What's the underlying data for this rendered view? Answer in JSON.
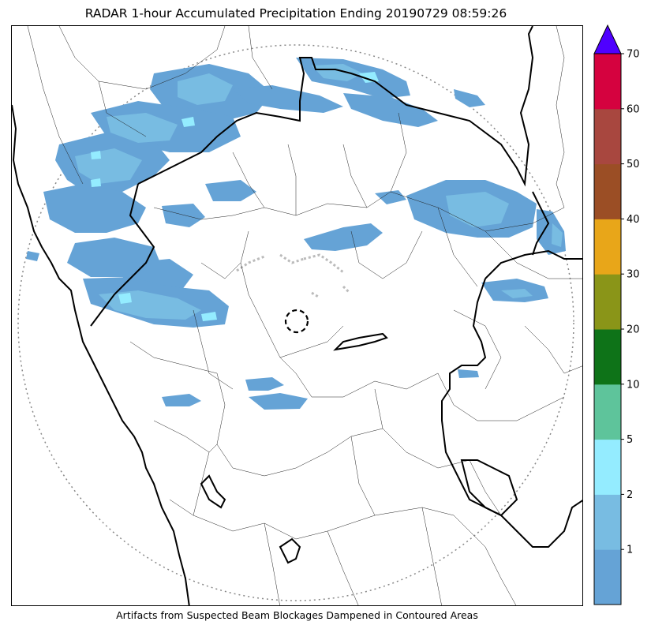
{
  "title": "RADAR 1-hour Accumulated Precipitation Ending 20190729 08:59:26",
  "footnote": "Artifacts from Suspected Beam Blockages Dampened in Contoured Areas",
  "colorbar": {
    "tick_labels": [
      "1",
      "2",
      "5",
      "10",
      "20",
      "30",
      "40",
      "50",
      "60",
      "70"
    ],
    "bins": [
      {
        "color": "#65a3d6"
      },
      {
        "color": "#78bce2"
      },
      {
        "color": "#94ecff"
      },
      {
        "color": "#5ec49b"
      },
      {
        "color": "#0e7318"
      },
      {
        "color": "#8a9518"
      },
      {
        "color": "#e8a619"
      },
      {
        "color": "#9b4e25"
      },
      {
        "color": "#a8473f"
      },
      {
        "color": "#d5023f"
      }
    ],
    "extend_color": "#4f00ff"
  },
  "colors": {
    "rain_light": "#65a3d6",
    "rain_mid": "#78bce2",
    "rain_cyan": "#94ecff",
    "range_ring": "#888888",
    "blockage_marks": "#bbbbbb"
  }
}
